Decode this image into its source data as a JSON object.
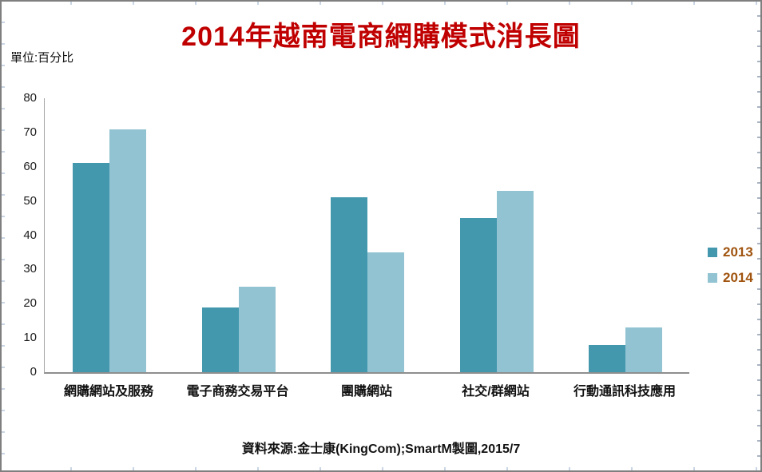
{
  "page": {
    "title": "2014年越南電商網購模式消長圖",
    "unit_label": "單位:百分比",
    "source_note": "資料來源:金士康(KingCom);SmartM製圖,2015/7"
  },
  "colors": {
    "title": "#C00000",
    "legend_text": "#A0540F",
    "axis": "#8E8E8E",
    "frame_border": "#7F7F7F",
    "bar_2013": "#4398AE",
    "bar_2014": "#92C3D2"
  },
  "chart_data": {
    "type": "bar",
    "title": "2014年越南電商網購模式消長圖",
    "unit": "百分比",
    "categories": [
      "網購網站及服務",
      "電子商務交易平台",
      "團購網站",
      "社交/群網站",
      "行動通訊科技應用"
    ],
    "series": [
      {
        "name": "2013",
        "color": "#4398AE",
        "values": [
          61,
          19,
          51,
          45,
          8
        ]
      },
      {
        "name": "2014",
        "color": "#92C3D2",
        "values": [
          71,
          25,
          35,
          53,
          13
        ]
      }
    ],
    "xlabel": "",
    "ylabel": "百分比",
    "ylim": [
      0,
      80
    ],
    "yticks": [
      0,
      10,
      20,
      30,
      40,
      50,
      60,
      70,
      80
    ],
    "grid": false,
    "legend_position": "right"
  }
}
